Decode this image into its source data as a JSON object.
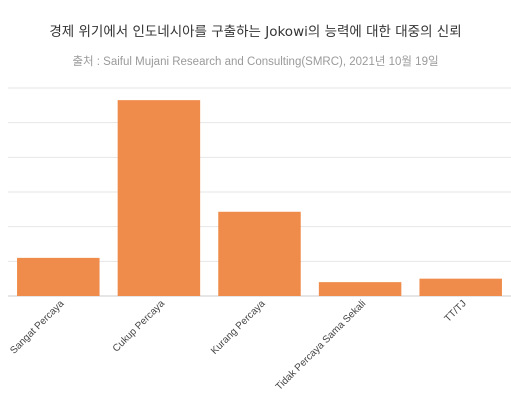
{
  "chart_data": {
    "type": "bar",
    "title": "경제 위기에서 인도네시아를 구출하는 Jokowi의 능력에 대한 대중의 신뢰",
    "subtitle": "출처 : Saiful Mujani Research and Consulting(SMRC), 2021년 10월 19일",
    "categories": [
      "Sangat Percaya",
      "Cukup Percaya",
      "Kurang Percaya",
      "Tidak Percaya Sama Sekali",
      "TT/TJ"
    ],
    "values": [
      11.0,
      56.5,
      24.3,
      4.0,
      5.0
    ],
    "ylim": [
      0,
      60
    ],
    "grid": true,
    "bar_color": "#F08C4B",
    "grid_color": "#e6e6e6"
  }
}
